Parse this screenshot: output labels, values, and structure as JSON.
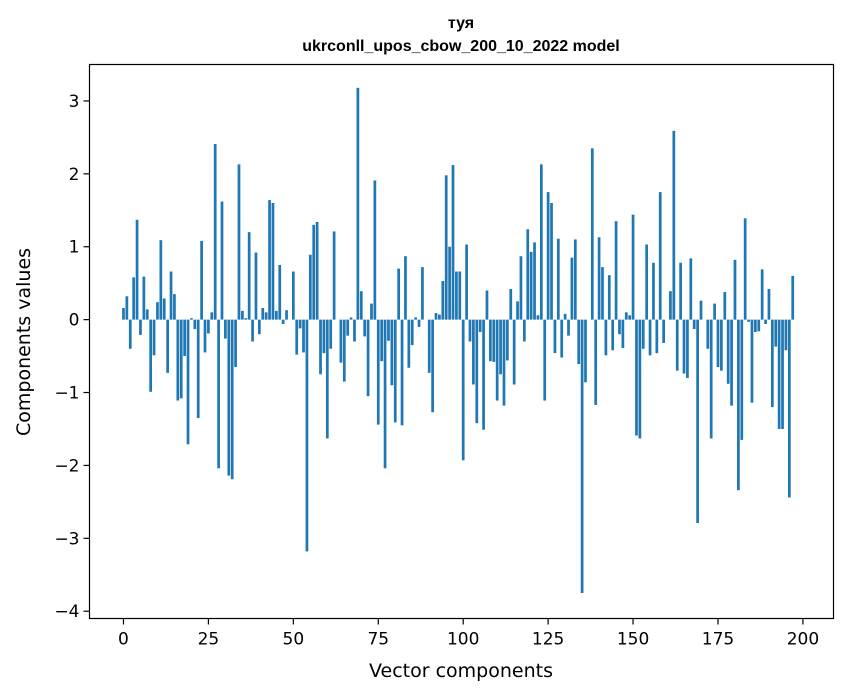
{
  "chart_data": {
    "type": "bar",
    "title_line1": "туя",
    "title_line2": "ukrconll_upos_cbow_200_10_2022 model",
    "xlabel": "Vector components",
    "ylabel": "Components values",
    "xlim": [
      -10,
      209
    ],
    "ylim": [
      -4.1,
      3.5
    ],
    "xticks": [
      0,
      25,
      50,
      75,
      100,
      125,
      150,
      175,
      200
    ],
    "yticks": [
      -4,
      -3,
      -2,
      -1,
      0,
      1,
      2,
      3
    ],
    "bar_color": "#1f77b4",
    "grid": false,
    "values": [
      0.16,
      0.32,
      -0.4,
      0.58,
      1.37,
      -0.21,
      0.59,
      0.14,
      -0.99,
      -0.49,
      0.24,
      1.09,
      0.29,
      -0.73,
      0.66,
      0.35,
      -1.11,
      -1.08,
      -0.5,
      -1.71,
      0.02,
      -0.13,
      -1.35,
      1.08,
      -0.45,
      -0.19,
      0.1,
      2.41,
      -2.04,
      1.62,
      -0.26,
      -2.14,
      -2.19,
      -0.65,
      2.13,
      0.12,
      0.02,
      1.2,
      -0.3,
      0.92,
      -0.2,
      0.16,
      0.1,
      1.64,
      1.6,
      0.12,
      0.75,
      -0.06,
      0.13,
      0.0,
      0.66,
      -0.48,
      -0.12,
      -0.45,
      -3.18,
      0.89,
      1.3,
      1.34,
      -0.75,
      -0.46,
      -1.63,
      -0.4,
      1.21,
      0.0,
      -0.59,
      -0.85,
      -0.22,
      0.03,
      -0.3,
      3.18,
      0.39,
      -0.23,
      -1.05,
      0.22,
      1.91,
      -1.44,
      -0.57,
      -2.04,
      -0.29,
      -0.9,
      -1.41,
      0.7,
      -1.45,
      0.87,
      -0.66,
      -0.35,
      0.03,
      -0.1,
      0.72,
      0.0,
      -0.73,
      -1.27,
      0.09,
      0.07,
      0.53,
      1.98,
      1.0,
      2.12,
      0.66,
      0.66,
      -1.93,
      1.03,
      -0.3,
      -0.89,
      -1.42,
      -0.17,
      -1.51,
      0.4,
      -0.57,
      -0.58,
      -1.11,
      -0.75,
      -1.18,
      -0.56,
      0.42,
      -0.89,
      0.25,
      0.87,
      -0.3,
      1.24,
      0.93,
      1.06,
      0.06,
      2.13,
      -1.11,
      1.75,
      1.6,
      -0.46,
      1.11,
      -0.52,
      0.08,
      -0.22,
      0.85,
      1.1,
      -0.61,
      -3.75,
      -0.86,
      0.0,
      2.35,
      -1.17,
      1.13,
      0.72,
      -0.49,
      0.61,
      -0.42,
      1.35,
      -0.2,
      -0.39,
      0.1,
      0.06,
      1.44,
      -1.59,
      -1.63,
      -0.4,
      1.03,
      -0.49,
      0.78,
      -0.46,
      1.75,
      -0.32,
      0.0,
      0.39,
      2.59,
      -0.7,
      0.78,
      -0.74,
      -0.8,
      0.84,
      -0.13,
      -2.79,
      0.26,
      0.0,
      -0.4,
      -1.63,
      0.22,
      -0.65,
      -0.7,
      0.38,
      -0.88,
      -1.18,
      0.82,
      -2.34,
      -1.65,
      1.39,
      -0.03,
      -1.14,
      -0.17,
      -0.16,
      0.69,
      -0.06,
      0.42,
      -1.2,
      -0.37,
      -1.5,
      -1.5,
      -0.42,
      -2.44,
      0.6
    ]
  }
}
